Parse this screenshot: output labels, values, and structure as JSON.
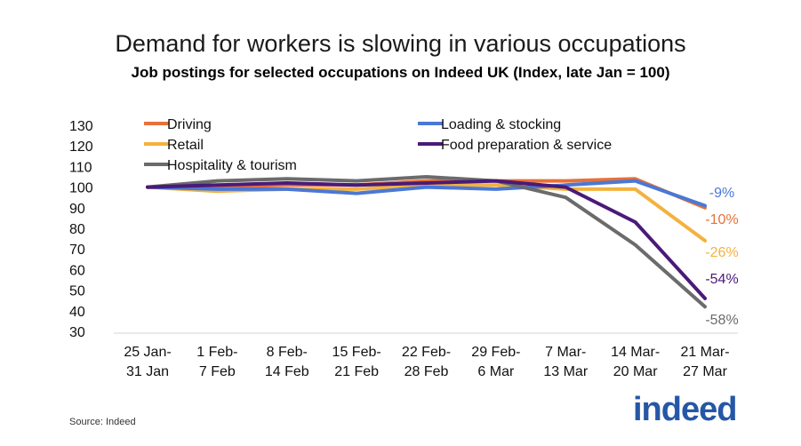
{
  "chart_data": {
    "type": "line",
    "title": "Demand for workers is slowing in various occupations",
    "subtitle": "Job postings for selected occupations on Indeed UK (Index, late Jan = 100)",
    "categories": [
      [
        "25 Jan-",
        "31 Jan"
      ],
      [
        "1 Feb-",
        "7 Feb"
      ],
      [
        "8 Feb-",
        "14 Feb"
      ],
      [
        "15 Feb-",
        "21 Feb"
      ],
      [
        "22 Feb-",
        "28 Feb"
      ],
      [
        "29 Feb-",
        "6 Mar"
      ],
      [
        "7 Mar-",
        "13 Mar"
      ],
      [
        "14 Mar-",
        "20 Mar"
      ],
      [
        "21 Mar-",
        "27 Mar"
      ]
    ],
    "ylim": [
      30,
      130
    ],
    "yticks": [
      130,
      120,
      110,
      100,
      90,
      80,
      70,
      60,
      50,
      40,
      30
    ],
    "series": [
      {
        "name": "Driving",
        "color": "#e8703a",
        "values": [
          100,
          100,
          101,
          101,
          103,
          103,
          103,
          104,
          90
        ],
        "end_label": "-10%"
      },
      {
        "name": "Loading & stocking",
        "color": "#4a78d6",
        "values": [
          100,
          99,
          99,
          97,
          100,
          99,
          101,
          103,
          91
        ],
        "end_label": "-9%"
      },
      {
        "name": "Retail",
        "color": "#f3b23f",
        "values": [
          100,
          98,
          99,
          99,
          101,
          101,
          99,
          99,
          74
        ],
        "end_label": "-26%"
      },
      {
        "name": "Food preparation & service",
        "color": "#4a1a78",
        "values": [
          100,
          101,
          102,
          101,
          102,
          103,
          100,
          83,
          46
        ],
        "end_label": "-54%"
      },
      {
        "name": "Hospitality & tourism",
        "color": "#6b6b6b",
        "values": [
          100,
          103,
          104,
          103,
          105,
          103,
          95,
          72,
          42
        ],
        "end_label": "-58%"
      }
    ]
  },
  "source": "Source: Indeed",
  "logo_text": "indeed"
}
